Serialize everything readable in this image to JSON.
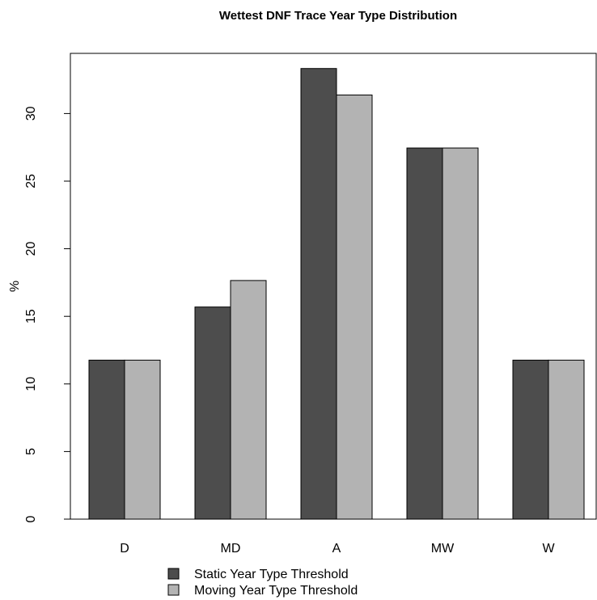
{
  "chart_data": {
    "type": "bar",
    "title": "Wettest DNF Trace Year Type Distribution",
    "xlabel": "",
    "ylabel": "%",
    "categories": [
      "D",
      "MD",
      "A",
      "MW",
      "W"
    ],
    "series": [
      {
        "name": "Static Year Type Threshold",
        "values": [
          11.76,
          15.69,
          33.33,
          27.45,
          11.76
        ],
        "color": "#4d4d4d"
      },
      {
        "name": "Moving Year Type Threshold",
        "values": [
          11.76,
          17.65,
          31.37,
          27.45,
          11.76
        ],
        "color": "#b3b3b3"
      }
    ],
    "ylim": [
      0,
      34.5
    ],
    "yticks": [
      "0",
      "5",
      "10",
      "15",
      "20",
      "25",
      "30"
    ],
    "legend_position": "bottom-center",
    "grid": false
  }
}
